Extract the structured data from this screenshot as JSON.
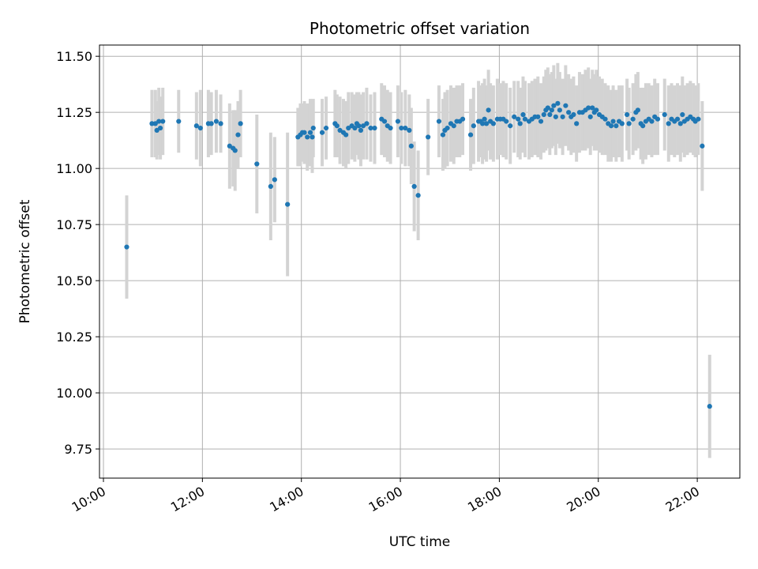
{
  "chart_data": {
    "type": "scatter",
    "title": "Photometric offset variation",
    "xlabel": "UTC time",
    "ylabel": "Photometric offset",
    "x_unit": "hours UTC",
    "xlim": [
      9.92,
      22.86
    ],
    "ylim": [
      9.62,
      11.55
    ],
    "x_ticks": [
      {
        "value": 10,
        "label": "10:00"
      },
      {
        "value": 12,
        "label": "12:00"
      },
      {
        "value": 14,
        "label": "14:00"
      },
      {
        "value": 16,
        "label": "16:00"
      },
      {
        "value": 18,
        "label": "18:00"
      },
      {
        "value": 20,
        "label": "20:00"
      },
      {
        "value": 22,
        "label": "22:00"
      }
    ],
    "y_ticks": [
      {
        "value": 9.75,
        "label": "9.75"
      },
      {
        "value": 10.0,
        "label": "10.00"
      },
      {
        "value": 10.25,
        "label": "10.25"
      },
      {
        "value": 10.5,
        "label": "10.50"
      },
      {
        "value": 10.75,
        "label": "10.75"
      },
      {
        "value": 11.0,
        "label": "11.00"
      },
      {
        "value": 11.25,
        "label": "11.25"
      },
      {
        "value": 11.5,
        "label": "11.50"
      }
    ],
    "grid": true,
    "colors": {
      "point": "#1f77b4",
      "errorbar": "#d3d3d3",
      "grid": "#b0b0b0"
    },
    "points": [
      [
        10.47,
        10.65,
        0.23
      ],
      [
        10.98,
        11.2,
        0.15
      ],
      [
        11.05,
        11.2,
        0.15
      ],
      [
        11.08,
        11.17,
        0.13
      ],
      [
        11.12,
        11.21,
        0.15
      ],
      [
        11.15,
        11.18,
        0.14
      ],
      [
        11.2,
        11.21,
        0.15
      ],
      [
        11.52,
        11.21,
        0.14
      ],
      [
        11.88,
        11.19,
        0.15
      ],
      [
        11.96,
        11.18,
        0.17
      ],
      [
        12.12,
        11.2,
        0.15
      ],
      [
        12.18,
        11.2,
        0.14
      ],
      [
        12.28,
        11.21,
        0.14
      ],
      [
        12.37,
        11.2,
        0.13
      ],
      [
        12.55,
        11.1,
        0.19
      ],
      [
        12.62,
        11.09,
        0.17
      ],
      [
        12.66,
        11.08,
        0.18
      ],
      [
        12.72,
        11.15,
        0.15
      ],
      [
        12.77,
        11.2,
        0.15
      ],
      [
        13.1,
        11.02,
        0.22
      ],
      [
        13.38,
        10.92,
        0.24
      ],
      [
        13.46,
        10.95,
        0.19
      ],
      [
        13.72,
        10.84,
        0.32
      ],
      [
        13.93,
        11.14,
        0.13
      ],
      [
        13.98,
        11.15,
        0.14
      ],
      [
        14.02,
        11.16,
        0.13
      ],
      [
        14.06,
        11.16,
        0.14
      ],
      [
        14.12,
        11.14,
        0.15
      ],
      [
        14.18,
        11.16,
        0.15
      ],
      [
        14.22,
        11.14,
        0.16
      ],
      [
        14.24,
        11.18,
        0.13
      ],
      [
        14.42,
        11.16,
        0.15
      ],
      [
        14.5,
        11.18,
        0.14
      ],
      [
        14.68,
        11.2,
        0.15
      ],
      [
        14.72,
        11.19,
        0.14
      ],
      [
        14.78,
        11.17,
        0.15
      ],
      [
        14.85,
        11.16,
        0.15
      ],
      [
        14.9,
        11.15,
        0.15
      ],
      [
        14.95,
        11.18,
        0.16
      ],
      [
        15.02,
        11.19,
        0.15
      ],
      [
        15.08,
        11.18,
        0.15
      ],
      [
        15.12,
        11.2,
        0.14
      ],
      [
        15.16,
        11.19,
        0.15
      ],
      [
        15.2,
        11.17,
        0.16
      ],
      [
        15.25,
        11.19,
        0.15
      ],
      [
        15.32,
        11.2,
        0.16
      ],
      [
        15.4,
        11.18,
        0.15
      ],
      [
        15.48,
        11.18,
        0.16
      ],
      [
        15.62,
        11.22,
        0.16
      ],
      [
        15.68,
        11.21,
        0.16
      ],
      [
        15.74,
        11.19,
        0.16
      ],
      [
        15.8,
        11.18,
        0.16
      ],
      [
        15.95,
        11.21,
        0.16
      ],
      [
        16.02,
        11.18,
        0.16
      ],
      [
        16.1,
        11.18,
        0.17
      ],
      [
        16.18,
        11.17,
        0.16
      ],
      [
        16.22,
        11.1,
        0.17
      ],
      [
        16.28,
        10.92,
        0.2
      ],
      [
        16.36,
        10.88,
        0.2
      ],
      [
        16.56,
        11.14,
        0.17
      ],
      [
        16.78,
        11.21,
        0.16
      ],
      [
        16.86,
        11.15,
        0.16
      ],
      [
        16.9,
        11.17,
        0.17
      ],
      [
        16.95,
        11.18,
        0.17
      ],
      [
        17.02,
        11.2,
        0.17
      ],
      [
        17.08,
        11.19,
        0.17
      ],
      [
        17.14,
        11.21,
        0.16
      ],
      [
        17.2,
        11.21,
        0.16
      ],
      [
        17.26,
        11.22,
        0.16
      ],
      [
        17.42,
        11.15,
        0.16
      ],
      [
        17.48,
        11.19,
        0.17
      ],
      [
        17.58,
        11.21,
        0.18
      ],
      [
        17.62,
        11.21,
        0.16
      ],
      [
        17.66,
        11.2,
        0.18
      ],
      [
        17.7,
        11.22,
        0.18
      ],
      [
        17.74,
        11.2,
        0.17
      ],
      [
        17.78,
        11.26,
        0.18
      ],
      [
        17.82,
        11.21,
        0.17
      ],
      [
        17.88,
        11.2,
        0.17
      ],
      [
        17.96,
        11.22,
        0.18
      ],
      [
        18.02,
        11.22,
        0.16
      ],
      [
        18.08,
        11.22,
        0.17
      ],
      [
        18.14,
        11.21,
        0.17
      ],
      [
        18.22,
        11.19,
        0.17
      ],
      [
        18.3,
        11.23,
        0.16
      ],
      [
        18.38,
        11.22,
        0.17
      ],
      [
        18.42,
        11.2,
        0.16
      ],
      [
        18.48,
        11.24,
        0.17
      ],
      [
        18.52,
        11.22,
        0.17
      ],
      [
        18.6,
        11.21,
        0.17
      ],
      [
        18.66,
        11.22,
        0.17
      ],
      [
        18.72,
        11.23,
        0.17
      ],
      [
        18.78,
        11.23,
        0.18
      ],
      [
        18.84,
        11.21,
        0.17
      ],
      [
        18.9,
        11.24,
        0.17
      ],
      [
        18.94,
        11.26,
        0.18
      ],
      [
        18.98,
        11.27,
        0.18
      ],
      [
        19.02,
        11.24,
        0.18
      ],
      [
        19.06,
        11.26,
        0.17
      ],
      [
        19.1,
        11.28,
        0.18
      ],
      [
        19.14,
        11.23,
        0.17
      ],
      [
        19.18,
        11.29,
        0.18
      ],
      [
        19.22,
        11.26,
        0.17
      ],
      [
        19.28,
        11.23,
        0.17
      ],
      [
        19.34,
        11.28,
        0.18
      ],
      [
        19.4,
        11.25,
        0.17
      ],
      [
        19.45,
        11.23,
        0.17
      ],
      [
        19.5,
        11.24,
        0.17
      ],
      [
        19.56,
        11.2,
        0.17
      ],
      [
        19.62,
        11.25,
        0.18
      ],
      [
        19.68,
        11.25,
        0.17
      ],
      [
        19.74,
        11.26,
        0.18
      ],
      [
        19.8,
        11.27,
        0.18
      ],
      [
        19.84,
        11.23,
        0.17
      ],
      [
        19.88,
        11.27,
        0.17
      ],
      [
        19.92,
        11.25,
        0.17
      ],
      [
        19.96,
        11.26,
        0.18
      ],
      [
        20.02,
        11.24,
        0.17
      ],
      [
        20.08,
        11.23,
        0.17
      ],
      [
        20.14,
        11.22,
        0.16
      ],
      [
        20.2,
        11.2,
        0.17
      ],
      [
        20.26,
        11.19,
        0.16
      ],
      [
        20.3,
        11.21,
        0.16
      ],
      [
        20.36,
        11.19,
        0.16
      ],
      [
        20.42,
        11.21,
        0.16
      ],
      [
        20.48,
        11.2,
        0.17
      ],
      [
        20.58,
        11.24,
        0.16
      ],
      [
        20.62,
        11.2,
        0.16
      ],
      [
        20.7,
        11.22,
        0.16
      ],
      [
        20.76,
        11.25,
        0.17
      ],
      [
        20.8,
        11.26,
        0.17
      ],
      [
        20.86,
        11.2,
        0.16
      ],
      [
        20.9,
        11.19,
        0.17
      ],
      [
        20.96,
        11.21,
        0.17
      ],
      [
        21.02,
        11.22,
        0.16
      ],
      [
        21.08,
        11.21,
        0.16
      ],
      [
        21.14,
        11.23,
        0.17
      ],
      [
        21.2,
        11.22,
        0.16
      ],
      [
        21.34,
        11.24,
        0.16
      ],
      [
        21.42,
        11.2,
        0.17
      ],
      [
        21.48,
        11.22,
        0.16
      ],
      [
        21.54,
        11.21,
        0.16
      ],
      [
        21.6,
        11.22,
        0.16
      ],
      [
        21.66,
        11.2,
        0.17
      ],
      [
        21.7,
        11.24,
        0.17
      ],
      [
        21.74,
        11.21,
        0.16
      ],
      [
        21.8,
        11.22,
        0.16
      ],
      [
        21.86,
        11.23,
        0.16
      ],
      [
        21.92,
        11.22,
        0.16
      ],
      [
        21.96,
        11.21,
        0.16
      ],
      [
        22.02,
        11.22,
        0.16
      ],
      [
        22.1,
        11.1,
        0.2
      ],
      [
        22.25,
        9.94,
        0.23
      ]
    ]
  }
}
